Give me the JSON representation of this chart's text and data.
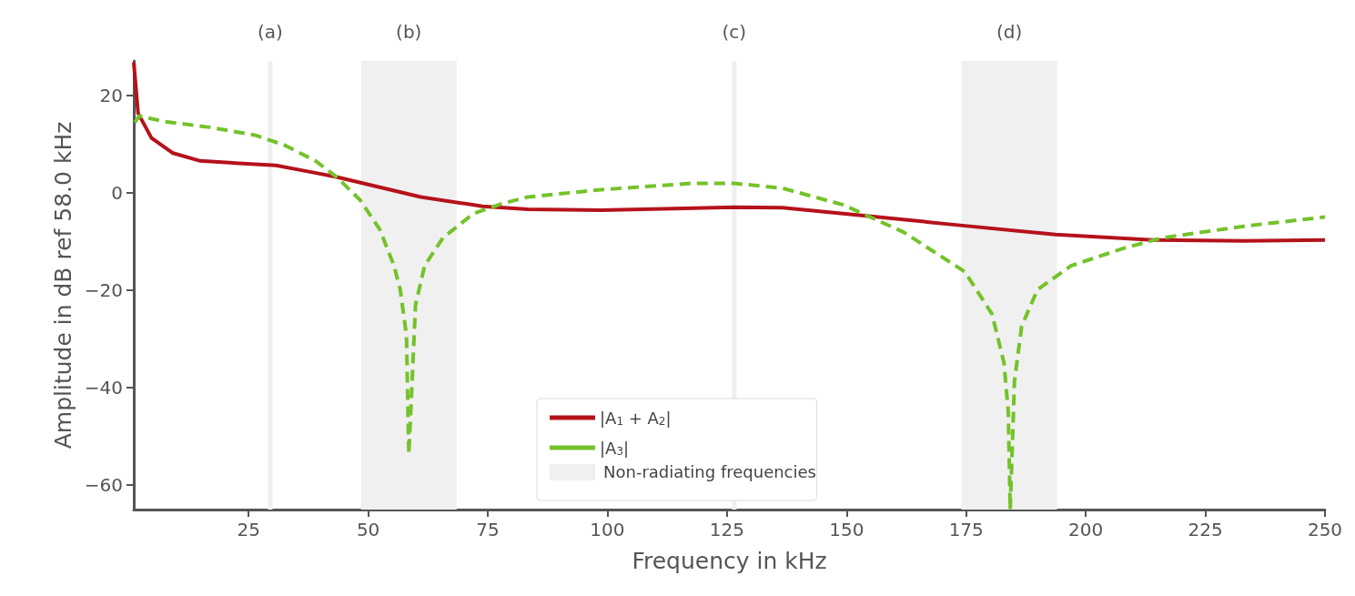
{
  "chart_data": {
    "type": "line",
    "xlabel": "Frequency in kHz",
    "ylabel": "Amplitude in dB ref 58.0 kHz",
    "xlim": [
      1,
      250
    ],
    "xticks": [
      25,
      50,
      75,
      100,
      125,
      150,
      175,
      200,
      225,
      250
    ],
    "ylim": [
      -65,
      27
    ],
    "yticks": [
      -60,
      -40,
      -20,
      0,
      20
    ],
    "grid": false,
    "legend": "bottom",
    "marker": "none",
    "annotations": [
      "Non-radiating frequencies"
    ],
    "bands": [
      {
        "axis": "x",
        "from": 29,
        "to": 30,
        "label": "(a)",
        "color": "#f0f0f0"
      },
      {
        "axis": "x",
        "from": 48.5,
        "to": 68.5,
        "label": "(b)",
        "color": "#f0f0f0"
      },
      {
        "axis": "x",
        "from": 126,
        "to": 127,
        "label": "(c)",
        "color": "#f0f0f0"
      },
      {
        "axis": "x",
        "from": 174,
        "to": 194,
        "label": "(d)",
        "color": "#f0f0f0"
      }
    ],
    "series": [
      {
        "name": "|A$_{1}$ + A$_{2}$|",
        "color": "#b5121b",
        "line_style": "solid",
        "x": [
          1,
          1.9,
          4.7,
          9.2,
          14.9,
          23,
          30.7,
          37.1,
          43.4,
          51.6,
          61,
          73.9,
          83.4,
          98.6,
          126.5,
          136.6,
          155.6,
          174.7,
          193.7,
          214,
          233,
          250
        ],
        "values": [
          26.7,
          16.3,
          11.2,
          8.1,
          6.5,
          6.0,
          5.6,
          4.4,
          3.2,
          1.3,
          -0.9,
          -2.8,
          -3.4,
          -3.6,
          -3.0,
          -3.1,
          -4.9,
          -6.8,
          -8.6,
          -9.7,
          -9.9,
          -9.7
        ]
      },
      {
        "name": "|A$_{3}$|",
        "color": "#74c22a",
        "line_style": "dashed",
        "x": [
          1.2,
          2.1,
          7.3,
          16.8,
          26.3,
          32.6,
          39,
          43.4,
          48.3,
          52.4,
          55.4,
          56.7,
          58,
          58.5,
          59.9,
          61.8,
          65.6,
          72,
          78.2,
          83.4,
          98.6,
          117.6,
          126.5,
          136.6,
          149.3,
          161.9,
          174.7,
          180.4,
          182.9,
          183.8,
          184.2,
          185.1,
          186.6,
          189.9,
          196.9,
          207.6,
          215.9,
          233,
          250
        ],
        "values": [
          14.4,
          15.7,
          14.6,
          13.4,
          11.8,
          9.7,
          6.5,
          3.2,
          -1.5,
          -7.5,
          -15,
          -19.9,
          -29.3,
          -53.6,
          -23,
          -15,
          -9.3,
          -4.3,
          -2.2,
          -0.9,
          0.6,
          1.9,
          1.9,
          0.9,
          -2.5,
          -8.1,
          -16.2,
          -24.9,
          -34.9,
          -44.9,
          -65,
          -38.6,
          -27.4,
          -19.9,
          -15,
          -11.5,
          -9.3,
          -6.9,
          -5.0
        ]
      }
    ]
  }
}
